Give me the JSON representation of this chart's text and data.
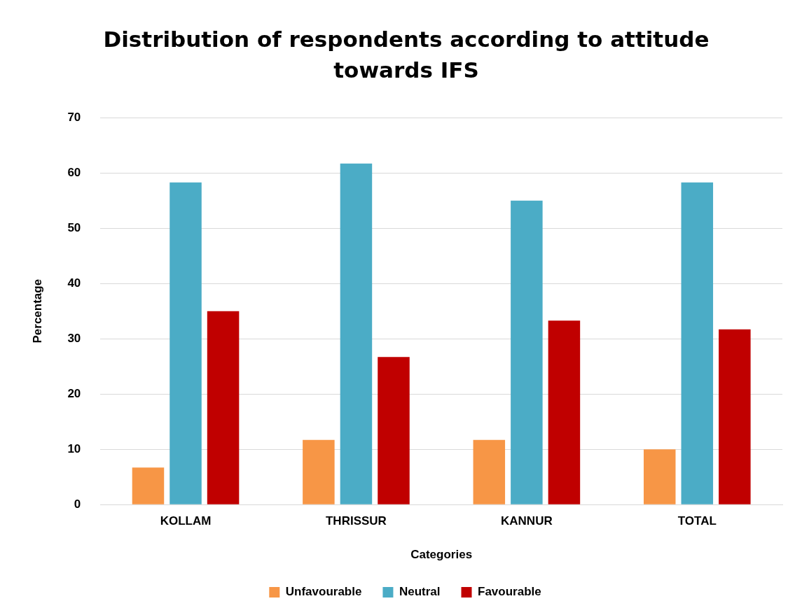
{
  "chart_data": {
    "type": "bar",
    "title": "Distribution of respondents according to attitude towards IFS",
    "xlabel": "Categories",
    "ylabel": "Percentage",
    "categories": [
      "KOLLAM",
      "THRISSUR",
      "KANNUR",
      "TOTAL"
    ],
    "series": [
      {
        "name": "Unfavourable",
        "color": "#f79646",
        "values": [
          6.7,
          11.7,
          11.7,
          10
        ]
      },
      {
        "name": "Neutral",
        "color": "#4bacc6",
        "values": [
          58.3,
          61.7,
          55,
          58.3
        ]
      },
      {
        "name": "Favourable",
        "color": "#c00000",
        "values": [
          35,
          26.7,
          33.3,
          31.7
        ]
      }
    ],
    "ylim": [
      0,
      70
    ],
    "yticks": [
      0,
      10,
      20,
      30,
      40,
      50,
      60,
      70
    ],
    "grid": "y",
    "legend": "bottom"
  }
}
